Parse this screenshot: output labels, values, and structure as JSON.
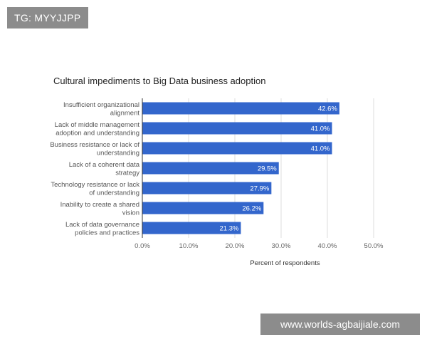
{
  "watermarks": {
    "top": "TG: MYYJJPP",
    "bottom": "www.worlds-agbaijiale.com"
  },
  "chart_data": {
    "type": "bar",
    "orientation": "horizontal",
    "title": "Cultural impediments to Big Data business adoption",
    "xlabel": "Percent of respondents",
    "ylabel": "",
    "xlim": [
      0,
      50
    ],
    "ticks": [
      "0.0%",
      "10.0%",
      "20.0%",
      "30.0%",
      "40.0%",
      "50.0%"
    ],
    "grid": true,
    "legend": "none",
    "bar_color": "#3366cc",
    "categories": [
      [
        "Insufficient organizational",
        "alignment"
      ],
      [
        "Lack of middle management",
        "adoption and understanding"
      ],
      [
        "Business resistance or lack of",
        "understanding"
      ],
      [
        "Lack of a coherent data",
        "strategy"
      ],
      [
        "Technology resistance or lack",
        "of understanding"
      ],
      [
        "Inability to create a shared",
        "vision"
      ],
      [
        "Lack of data governance",
        "policies and practices"
      ]
    ],
    "values": [
      42.6,
      41.0,
      41.0,
      29.5,
      27.9,
      26.2,
      21.3
    ],
    "value_labels": [
      "42.6%",
      "41.0%",
      "41.0%",
      "29.5%",
      "27.9%",
      "26.2%",
      "21.3%"
    ]
  }
}
